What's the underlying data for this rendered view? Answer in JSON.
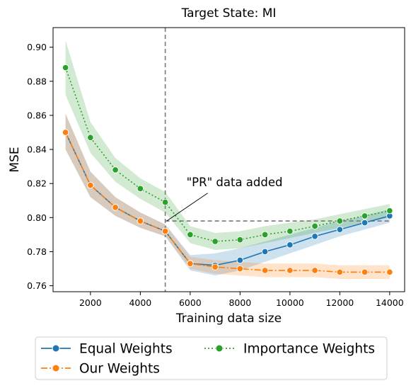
{
  "chart_data": {
    "type": "line",
    "title": "Target State: MI",
    "xlabel": "Training data size",
    "ylabel": "MSE",
    "xlim": [
      500,
      14600
    ],
    "ylim": [
      0.7565,
      0.9115
    ],
    "xticks": [
      2000,
      4000,
      6000,
      8000,
      10000,
      12000,
      14000
    ],
    "yticks": [
      0.76,
      0.78,
      0.8,
      0.82,
      0.84,
      0.86,
      0.88,
      0.9
    ],
    "ytick_labels": [
      "0.76",
      "0.78",
      "0.80",
      "0.82",
      "0.84",
      "0.86",
      "0.88",
      "0.90"
    ],
    "grid": false,
    "legend_position": "bottom-outside",
    "x": [
      1000,
      2000,
      3000,
      4000,
      5000,
      6000,
      7000,
      8000,
      9000,
      10000,
      11000,
      12000,
      13000,
      14000
    ],
    "series": [
      {
        "name": "Equal Weights",
        "color": "#1f77b4",
        "line_style": "solid",
        "values": [
          0.85,
          0.819,
          0.806,
          0.798,
          0.792,
          0.773,
          0.772,
          0.775,
          0.78,
          0.784,
          0.789,
          0.793,
          0.797,
          0.801
        ],
        "lower": [
          0.84,
          0.812,
          0.801,
          0.794,
          0.789,
          0.769,
          0.766,
          0.769,
          0.774,
          0.779,
          0.784,
          0.789,
          0.793,
          0.797
        ],
        "upper": [
          0.861,
          0.827,
          0.812,
          0.803,
          0.796,
          0.778,
          0.779,
          0.782,
          0.786,
          0.79,
          0.794,
          0.798,
          0.801,
          0.805
        ]
      },
      {
        "name": "Our Weights",
        "color": "#ff7f0e",
        "line_style": "dashdot",
        "values": [
          0.85,
          0.819,
          0.806,
          0.798,
          0.792,
          0.773,
          0.771,
          0.77,
          0.769,
          0.769,
          0.769,
          0.768,
          0.768,
          0.768
        ],
        "lower": [
          0.84,
          0.812,
          0.801,
          0.794,
          0.789,
          0.77,
          0.767,
          0.766,
          0.765,
          0.765,
          0.765,
          0.764,
          0.764,
          0.764
        ],
        "upper": [
          0.861,
          0.827,
          0.812,
          0.803,
          0.796,
          0.777,
          0.775,
          0.774,
          0.773,
          0.773,
          0.773,
          0.772,
          0.772,
          0.772
        ]
      },
      {
        "name": "Importance Weights",
        "color": "#2ca02c",
        "line_style": "dotted",
        "values": [
          0.888,
          0.847,
          0.828,
          0.817,
          0.809,
          0.79,
          0.786,
          0.787,
          0.79,
          0.792,
          0.795,
          0.798,
          0.801,
          0.804
        ],
        "lower": [
          0.872,
          0.838,
          0.821,
          0.811,
          0.803,
          0.785,
          0.781,
          0.782,
          0.785,
          0.788,
          0.791,
          0.794,
          0.797,
          0.8
        ],
        "upper": [
          0.904,
          0.856,
          0.835,
          0.823,
          0.815,
          0.795,
          0.791,
          0.792,
          0.795,
          0.797,
          0.799,
          0.802,
          0.805,
          0.808
        ]
      }
    ],
    "reference_lines": {
      "vertical_x": 5000,
      "horizontal_y": 0.798,
      "horizontal_x_range": [
        5000,
        14000
      ],
      "color": "#808080"
    },
    "annotation": {
      "text": "\"PR\" data added",
      "text_x": 5850,
      "text_y": 0.8185,
      "arrow_to_x": 5000,
      "arrow_to_y": 0.798
    }
  }
}
